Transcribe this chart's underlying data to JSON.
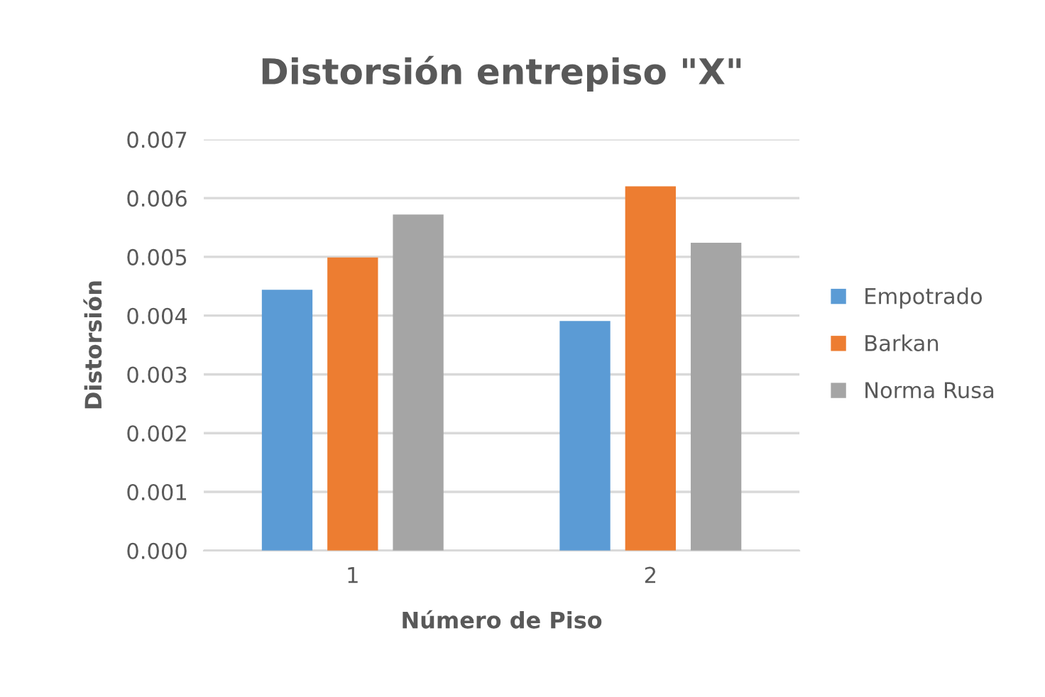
{
  "chart_data": {
    "type": "bar",
    "title": "Distorsión entrepiso \"X\"",
    "xlabel": "Número de Piso",
    "ylabel": "Distorsión",
    "categories": [
      "1",
      "2"
    ],
    "series": [
      {
        "name": "Empotrado",
        "color": "#5b9bd5",
        "values": [
          0.00444,
          0.00391
        ]
      },
      {
        "name": "Barkan",
        "color": "#ed7d31",
        "values": [
          0.00499,
          0.0062
        ]
      },
      {
        "name": "Norma Rusa",
        "color": "#a5a5a5",
        "values": [
          0.00572,
          0.00524
        ]
      }
    ],
    "ylim": [
      0,
      0.007
    ],
    "yticks": [
      {
        "value": 0,
        "label": "0.000"
      },
      {
        "value": 0.001,
        "label": "0.001"
      },
      {
        "value": 0.002,
        "label": "0.002"
      },
      {
        "value": 0.003,
        "label": "0.003"
      },
      {
        "value": 0.004,
        "label": "0.004"
      },
      {
        "value": 0.005,
        "label": "0.005"
      },
      {
        "value": 0.006,
        "label": "0.006"
      },
      {
        "value": 0.007,
        "label": "0.007"
      }
    ],
    "grid": "y",
    "legend": "right"
  }
}
